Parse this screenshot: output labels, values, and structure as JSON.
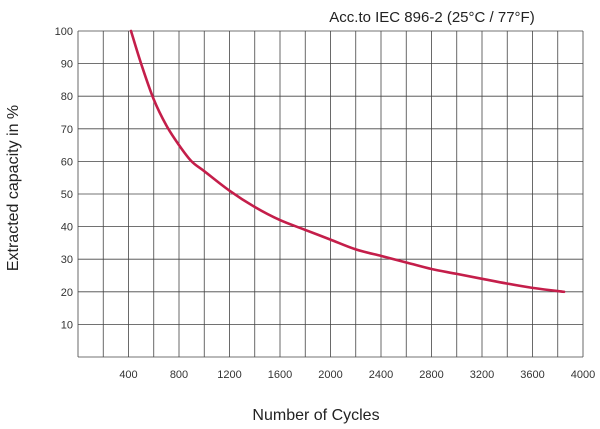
{
  "chart_data": {
    "type": "line",
    "title": "Acc.to IEC 896-2 (25°C / 77°F)",
    "xlabel": "Number of Cycles",
    "ylabel": "Extracted capacity in %",
    "xlim": [
      0,
      4000
    ],
    "ylim": [
      0,
      100
    ],
    "x_ticks": [
      400,
      800,
      1200,
      1600,
      2000,
      2400,
      2800,
      3200,
      3600,
      4000
    ],
    "y_ticks": [
      10,
      20,
      30,
      40,
      50,
      60,
      70,
      80,
      90,
      100
    ],
    "x_grid_step": 200,
    "grid": true,
    "color": "#c41e4a",
    "series": [
      {
        "x": [
          420,
          500,
          600,
          700,
          800,
          900,
          1000,
          1200,
          1400,
          1600,
          1800,
          2000,
          2200,
          2400,
          2600,
          2800,
          3000,
          3200,
          3400,
          3600,
          3800,
          3850
        ],
        "y": [
          100,
          90,
          79,
          71,
          65,
          60,
          57,
          51,
          46,
          42,
          39,
          36,
          33,
          31,
          29,
          27,
          25.5,
          24,
          22.5,
          21.2,
          20.2,
          20
        ]
      }
    ]
  }
}
